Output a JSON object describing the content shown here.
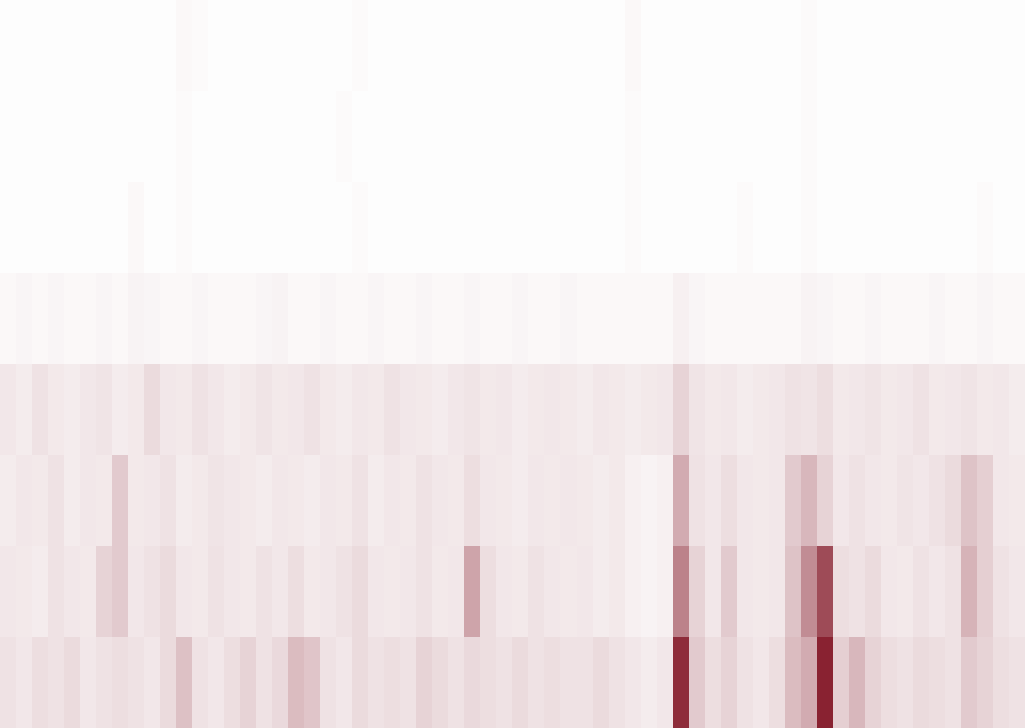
{
  "chart_data": {
    "type": "heatmap",
    "color": "#7f1020",
    "tick_labels": false,
    "value_range": [
      0,
      1
    ],
    "cells": [
      [
        0.01,
        0.01,
        0.01,
        0.01,
        0.01,
        0.01,
        0.01,
        0.01,
        0.01,
        0.01,
        0.01,
        0.03,
        0.02,
        0.01,
        0.01,
        0.01,
        0.01,
        0.01,
        0.01,
        0.01,
        0.01,
        0.01,
        0.02,
        0.01,
        0.01,
        0.01,
        0.01,
        0.01,
        0.01,
        0.01,
        0.01,
        0.01,
        0.01,
        0.01,
        0.01,
        0.01,
        0.01,
        0.01,
        0.01,
        0.03,
        0.01,
        0.01,
        0.01,
        0.01,
        0.01,
        0.01,
        0.01,
        0.01,
        0.01,
        0.01,
        0.02,
        0.01,
        0.01,
        0.01,
        0.01,
        0.01,
        0.01,
        0.01,
        0.01,
        0.01,
        0.01,
        0.01,
        0.01,
        0.01
      ],
      [
        0.01,
        0.01,
        0.01,
        0.01,
        0.01,
        0.01,
        0.01,
        0.01,
        0.01,
        0.01,
        0.01,
        0.02,
        0.01,
        0.01,
        0.01,
        0.01,
        0.01,
        0.01,
        0.01,
        0.01,
        0.01,
        0.02,
        0.01,
        0.01,
        0.01,
        0.01,
        0.01,
        0.01,
        0.01,
        0.01,
        0.01,
        0.01,
        0.01,
        0.01,
        0.01,
        0.01,
        0.01,
        0.01,
        0.01,
        0.02,
        0.01,
        0.01,
        0.01,
        0.01,
        0.01,
        0.01,
        0.01,
        0.01,
        0.01,
        0.01,
        0.02,
        0.01,
        0.01,
        0.01,
        0.01,
        0.01,
        0.01,
        0.01,
        0.01,
        0.01,
        0.01,
        0.01,
        0.01,
        0.01
      ],
      [
        0.01,
        0.01,
        0.01,
        0.01,
        0.01,
        0.01,
        0.01,
        0.01,
        0.03,
        0.01,
        0.01,
        0.02,
        0.01,
        0.01,
        0.01,
        0.01,
        0.01,
        0.01,
        0.01,
        0.01,
        0.01,
        0.01,
        0.02,
        0.01,
        0.01,
        0.01,
        0.01,
        0.01,
        0.01,
        0.01,
        0.01,
        0.01,
        0.01,
        0.01,
        0.01,
        0.01,
        0.01,
        0.01,
        0.01,
        0.02,
        0.01,
        0.01,
        0.01,
        0.01,
        0.01,
        0.01,
        0.02,
        0.01,
        0.01,
        0.01,
        0.02,
        0.01,
        0.01,
        0.01,
        0.01,
        0.01,
        0.01,
        0.01,
        0.01,
        0.01,
        0.01,
        0.02,
        0.01,
        0.01
      ],
      [
        0.03,
        0.04,
        0.03,
        0.04,
        0.03,
        0.03,
        0.04,
        0.03,
        0.05,
        0.04,
        0.03,
        0.03,
        0.04,
        0.03,
        0.03,
        0.03,
        0.04,
        0.05,
        0.03,
        0.03,
        0.04,
        0.03,
        0.03,
        0.04,
        0.03,
        0.03,
        0.04,
        0.03,
        0.03,
        0.04,
        0.03,
        0.03,
        0.04,
        0.03,
        0.03,
        0.04,
        0.03,
        0.03,
        0.03,
        0.03,
        0.03,
        0.03,
        0.06,
        0.04,
        0.03,
        0.03,
        0.03,
        0.03,
        0.03,
        0.03,
        0.05,
        0.04,
        0.03,
        0.03,
        0.04,
        0.03,
        0.03,
        0.03,
        0.04,
        0.03,
        0.03,
        0.04,
        0.03,
        0.03
      ],
      [
        0.1,
        0.08,
        0.12,
        0.09,
        0.08,
        0.1,
        0.11,
        0.08,
        0.09,
        0.15,
        0.1,
        0.09,
        0.12,
        0.1,
        0.08,
        0.09,
        0.11,
        0.09,
        0.1,
        0.12,
        0.09,
        0.08,
        0.1,
        0.09,
        0.12,
        0.1,
        0.09,
        0.08,
        0.1,
        0.11,
        0.09,
        0.1,
        0.08,
        0.09,
        0.1,
        0.09,
        0.08,
        0.1,
        0.09,
        0.08,
        0.09,
        0.1,
        0.18,
        0.11,
        0.09,
        0.1,
        0.08,
        0.09,
        0.1,
        0.12,
        0.11,
        0.14,
        0.09,
        0.1,
        0.11,
        0.09,
        0.1,
        0.12,
        0.09,
        0.1,
        0.11,
        0.09,
        0.1,
        0.08
      ],
      [
        0.08,
        0.1,
        0.09,
        0.12,
        0.08,
        0.1,
        0.09,
        0.22,
        0.09,
        0.1,
        0.12,
        0.08,
        0.09,
        0.11,
        0.1,
        0.09,
        0.08,
        0.1,
        0.09,
        0.08,
        0.1,
        0.09,
        0.12,
        0.08,
        0.1,
        0.09,
        0.12,
        0.1,
        0.09,
        0.14,
        0.1,
        0.09,
        0.08,
        0.1,
        0.09,
        0.1,
        0.09,
        0.08,
        0.09,
        0.06,
        0.05,
        0.06,
        0.35,
        0.12,
        0.1,
        0.14,
        0.1,
        0.09,
        0.1,
        0.22,
        0.3,
        0.18,
        0.1,
        0.12,
        0.1,
        0.09,
        0.11,
        0.1,
        0.12,
        0.15,
        0.25,
        0.2,
        0.1,
        0.09
      ],
      [
        0.1,
        0.09,
        0.08,
        0.12,
        0.1,
        0.09,
        0.18,
        0.22,
        0.1,
        0.12,
        0.15,
        0.1,
        0.09,
        0.12,
        0.1,
        0.09,
        0.12,
        0.1,
        0.14,
        0.09,
        0.1,
        0.12,
        0.15,
        0.1,
        0.09,
        0.1,
        0.12,
        0.09,
        0.1,
        0.38,
        0.14,
        0.1,
        0.09,
        0.12,
        0.1,
        0.09,
        0.1,
        0.08,
        0.09,
        0.06,
        0.05,
        0.06,
        0.52,
        0.18,
        0.1,
        0.22,
        0.1,
        0.09,
        0.1,
        0.25,
        0.48,
        0.75,
        0.14,
        0.12,
        0.15,
        0.1,
        0.09,
        0.12,
        0.1,
        0.12,
        0.32,
        0.2,
        0.12,
        0.1
      ],
      [
        0.12,
        0.1,
        0.14,
        0.12,
        0.15,
        0.1,
        0.12,
        0.14,
        0.12,
        0.1,
        0.15,
        0.26,
        0.12,
        0.1,
        0.14,
        0.18,
        0.12,
        0.16,
        0.28,
        0.24,
        0.12,
        0.1,
        0.15,
        0.12,
        0.14,
        0.12,
        0.18,
        0.15,
        0.12,
        0.16,
        0.14,
        0.12,
        0.15,
        0.12,
        0.14,
        0.12,
        0.12,
        0.15,
        0.12,
        0.1,
        0.08,
        0.1,
        0.88,
        0.22,
        0.14,
        0.18,
        0.12,
        0.1,
        0.14,
        0.28,
        0.35,
        0.92,
        0.2,
        0.3,
        0.18,
        0.14,
        0.12,
        0.15,
        0.14,
        0.12,
        0.22,
        0.18,
        0.14,
        0.12
      ]
    ]
  }
}
